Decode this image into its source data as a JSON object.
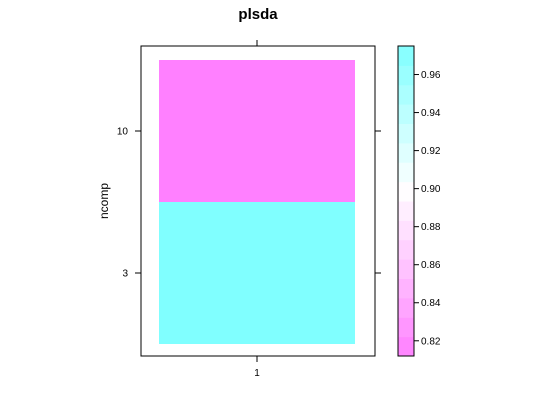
{
  "chart_data": {
    "type": "heatmap",
    "title": "plsda",
    "xlabel": "",
    "ylabel": "ncomp",
    "x_categories": [
      "1"
    ],
    "y_categories": [
      "3",
      "10"
    ],
    "cells": [
      {
        "x": "1",
        "y": "3",
        "value": 0.975
      },
      {
        "x": "1",
        "y": "10",
        "value": 0.812
      }
    ],
    "colorbar": {
      "range": [
        0.812,
        0.975
      ],
      "ticks": [
        0.82,
        0.84,
        0.86,
        0.88,
        0.9,
        0.92,
        0.94,
        0.96
      ],
      "tick_labels": [
        "0.82",
        "0.84",
        "0.86",
        "0.88",
        "0.90",
        "0.92",
        "0.94",
        "0.96"
      ],
      "low_color": "#ff80ff",
      "mid_color": "#ffffff",
      "high_color": "#80ffff"
    },
    "grid": false,
    "legend_position": "right"
  }
}
